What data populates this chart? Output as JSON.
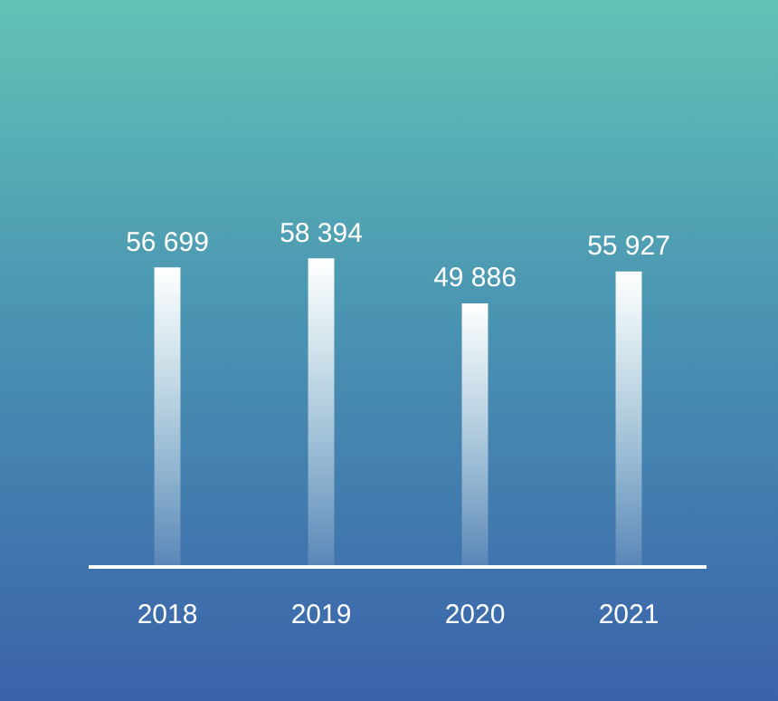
{
  "chart_data": {
    "type": "bar",
    "categories": [
      "2018",
      "2019",
      "2020",
      "2021"
    ],
    "values": [
      56699,
      58394,
      49886,
      55927
    ],
    "value_labels": [
      "56 699",
      "58 394",
      "49 886",
      "55 927"
    ],
    "color": "#ffffff",
    "tick_labels": "x",
    "grid": false,
    "legend": false
  }
}
